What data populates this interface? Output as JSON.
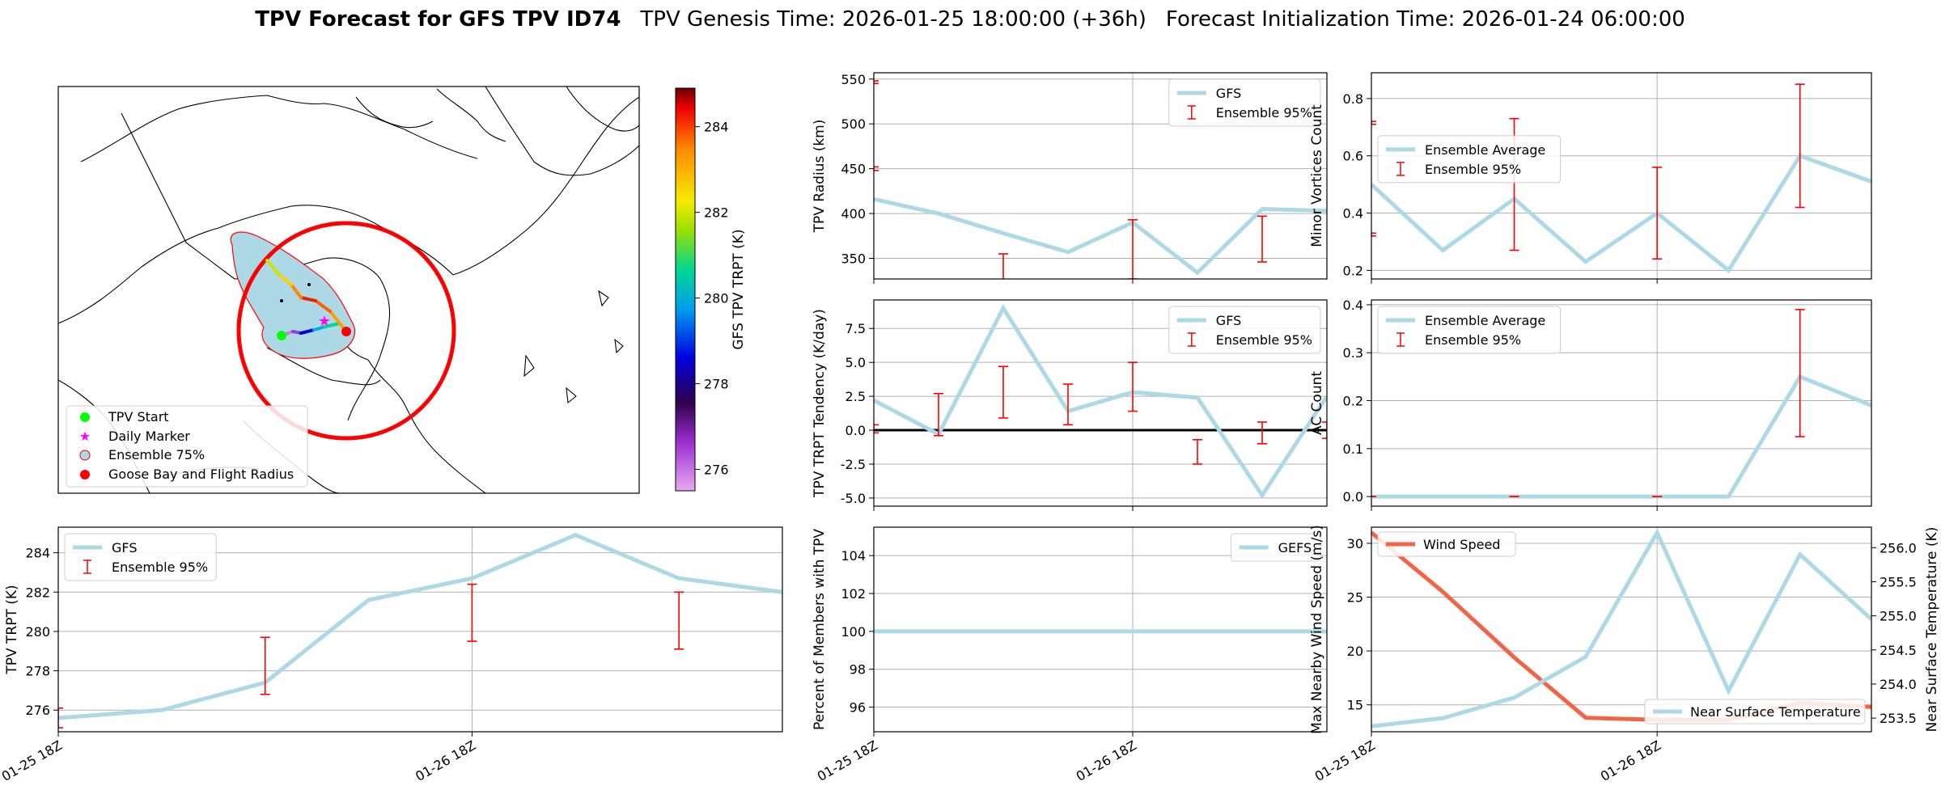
{
  "title": {
    "bold": "TPV Forecast for GFS TPV ID74",
    "genesis": "TPV Genesis Time: 2026-01-25 18:00:00 (+36h)",
    "init": "Forecast Initialization Time: 2026-01-24 06:00:00"
  },
  "colors": {
    "gfs": "#add8e6",
    "err": "#ff0000",
    "wind": "#f36346",
    "temp_axis": "#4169e1"
  },
  "map": {
    "legend": [
      "TPV Start",
      "Daily Marker",
      "Ensemble 75%",
      "Goose Bay and Flight Radius"
    ],
    "colorbar_label": "GFS TPV TRPT (K)",
    "colorbar_ticks": [
      276,
      278,
      280,
      282,
      284
    ],
    "colorbar_range": [
      275.5,
      284.9
    ]
  },
  "x_tick_labels": [
    "01-25 18Z",
    "01-26 18Z"
  ],
  "chart_data": [
    {
      "id": "radius",
      "type": "line",
      "ylabel": "TPV Radius (km)",
      "ylim": [
        327,
        557
      ],
      "yticks": [
        350,
        400,
        450,
        500,
        550
      ],
      "x_range": [
        0,
        7
      ],
      "x_ticks": [
        0,
        4
      ],
      "series": [
        {
          "name": "GFS",
          "x": [
            0,
            1,
            2,
            3,
            4,
            5,
            6,
            7
          ],
          "values": [
            416,
            400,
            378,
            357,
            390,
            334,
            405,
            403
          ]
        }
      ],
      "errorbars": {
        "name": "Ensemble 95%",
        "x": [
          2,
          4,
          6,
          0,
          0
        ],
        "low": [
          322,
          327,
          346,
          448,
          545
        ],
        "high": [
          355,
          393,
          397,
          452,
          548
        ]
      },
      "zero_line": false,
      "legend": [
        "GFS",
        "Ensemble 95%"
      ],
      "legend_pos": "top-right"
    },
    {
      "id": "tendency",
      "type": "line",
      "ylabel": "TPV TRPT Tendency (K/day)",
      "ylim": [
        -5.6,
        9.6
      ],
      "yticks": [
        -5.0,
        -2.5,
        0.0,
        2.5,
        5.0,
        7.5
      ],
      "x_range": [
        0,
        7
      ],
      "x_ticks": [
        0,
        4
      ],
      "series": [
        {
          "name": "GFS",
          "x": [
            0,
            1,
            2,
            3,
            4,
            5,
            6,
            7
          ],
          "values": [
            2.2,
            -0.3,
            9.0,
            1.4,
            2.8,
            2.4,
            -4.8,
            2.5
          ]
        }
      ],
      "errorbars": {
        "name": "Ensemble 95%",
        "x": [
          0,
          1,
          2,
          3,
          4,
          5,
          6,
          7
        ],
        "low": [
          -0.2,
          -0.4,
          0.9,
          0.4,
          1.4,
          -2.5,
          -1.0,
          -0.6
        ],
        "high": [
          0.4,
          2.7,
          4.7,
          3.4,
          5.0,
          -0.7,
          0.6,
          0.6
        ]
      },
      "zero_line": true,
      "legend": [
        "GFS",
        "Ensemble 95%"
      ],
      "legend_pos": "top-right"
    },
    {
      "id": "minor",
      "type": "line",
      "ylabel": "Minor Vortices Count",
      "ylim": [
        0.17,
        0.89
      ],
      "yticks": [
        0.2,
        0.4,
        0.6,
        0.8
      ],
      "x_range": [
        0,
        7
      ],
      "x_ticks": [
        0,
        4
      ],
      "series": [
        {
          "name": "Ensemble Average",
          "x": [
            0,
            1,
            2,
            3,
            4,
            5,
            6,
            7
          ],
          "values": [
            0.5,
            0.27,
            0.45,
            0.23,
            0.4,
            0.2,
            0.6,
            0.51
          ]
        }
      ],
      "errorbars": {
        "name": "Ensemble 95%",
        "x": [
          0,
          0,
          2,
          4,
          6
        ],
        "low": [
          0.32,
          0.71,
          0.27,
          0.24,
          0.42
        ],
        "high": [
          0.33,
          0.72,
          0.73,
          0.56,
          0.85
        ]
      },
      "zero_line": false,
      "legend": [
        "Ensemble Average",
        "Ensemble 95%"
      ],
      "legend_pos": "center-left"
    },
    {
      "id": "ac",
      "type": "line",
      "ylabel": "AC Count",
      "ylim": [
        -0.02,
        0.41
      ],
      "yticks": [
        0.0,
        0.1,
        0.2,
        0.3,
        0.4
      ],
      "x_range": [
        0,
        7
      ],
      "x_ticks": [
        0,
        4
      ],
      "series": [
        {
          "name": "Ensemble Average",
          "x": [
            0,
            1,
            2,
            3,
            4,
            5,
            6,
            7
          ],
          "values": [
            0,
            0,
            0,
            0,
            0,
            0,
            0.25,
            0.19
          ]
        }
      ],
      "errorbars": {
        "name": "Ensemble 95%",
        "x": [
          0,
          2,
          4,
          6
        ],
        "low": [
          0,
          0,
          0,
          0.125
        ],
        "high": [
          0,
          0,
          0,
          0.39
        ]
      },
      "zero_line": false,
      "legend": [
        "Ensemble Average",
        "Ensemble 95%"
      ],
      "legend_pos": "top-left"
    },
    {
      "id": "trpt",
      "type": "line",
      "ylabel": "TPV TRPT (K)",
      "ylim": [
        274.9,
        285.3
      ],
      "yticks": [
        276,
        278,
        280,
        282,
        284
      ],
      "x_range": [
        0,
        7
      ],
      "x_ticks": [
        0,
        4
      ],
      "series": [
        {
          "name": "GFS",
          "x": [
            0,
            1,
            2,
            3,
            4,
            5,
            6,
            7
          ],
          "values": [
            275.6,
            276.0,
            277.4,
            281.6,
            282.7,
            284.9,
            282.7,
            282.0
          ]
        }
      ],
      "errorbars": {
        "name": "Ensemble 95%",
        "x": [
          0,
          2,
          4,
          6
        ],
        "low": [
          275.1,
          276.8,
          279.5,
          279.1
        ],
        "high": [
          276.1,
          279.7,
          282.4,
          282.0
        ]
      },
      "zero_line": false,
      "legend": [
        "GFS",
        "Ensemble 95%"
      ],
      "legend_pos": "top-left"
    },
    {
      "id": "percent",
      "type": "line",
      "ylabel": "Percent of Members with TPV",
      "ylim": [
        94.7,
        105.5
      ],
      "yticks": [
        96,
        98,
        100,
        102,
        104
      ],
      "x_range": [
        0,
        7
      ],
      "x_ticks": [
        0,
        4
      ],
      "series": [
        {
          "name": "GEFS",
          "x": [
            0,
            7
          ],
          "values": [
            100,
            100
          ]
        }
      ],
      "errorbars": null,
      "zero_line": false,
      "legend": [
        "GEFS"
      ],
      "legend_pos": "top-right"
    },
    {
      "id": "wind_temp",
      "type": "line",
      "ylabel": "Max Nearby Wind Speed (m/s)",
      "ylabel_right": "Near Surface Temperature (K)",
      "ylim": [
        12.5,
        31.5
      ],
      "yticks": [
        15,
        20,
        25,
        30
      ],
      "ylim_right": [
        253.3,
        256.3
      ],
      "yticks_right": [
        253.5,
        254.0,
        254.5,
        255.0,
        255.5,
        256.0
      ],
      "x_range": [
        0,
        7
      ],
      "x_ticks": [
        0,
        4
      ],
      "series": [
        {
          "name": "Wind Speed",
          "axis": "left",
          "x": [
            0,
            1,
            2,
            3,
            4,
            5,
            6,
            7
          ],
          "values": [
            31.0,
            25.5,
            19.4,
            13.8,
            13.6,
            13.6,
            15.2,
            14.8
          ]
        },
        {
          "name": "Near Surface Temperature",
          "axis": "right",
          "x": [
            0,
            1,
            2,
            3,
            4,
            5,
            6,
            7
          ],
          "values": [
            253.38,
            253.5,
            253.8,
            254.4,
            256.22,
            253.9,
            255.9,
            254.95
          ]
        }
      ],
      "legend": [
        "Wind Speed",
        "Near Surface Temperature"
      ]
    }
  ]
}
